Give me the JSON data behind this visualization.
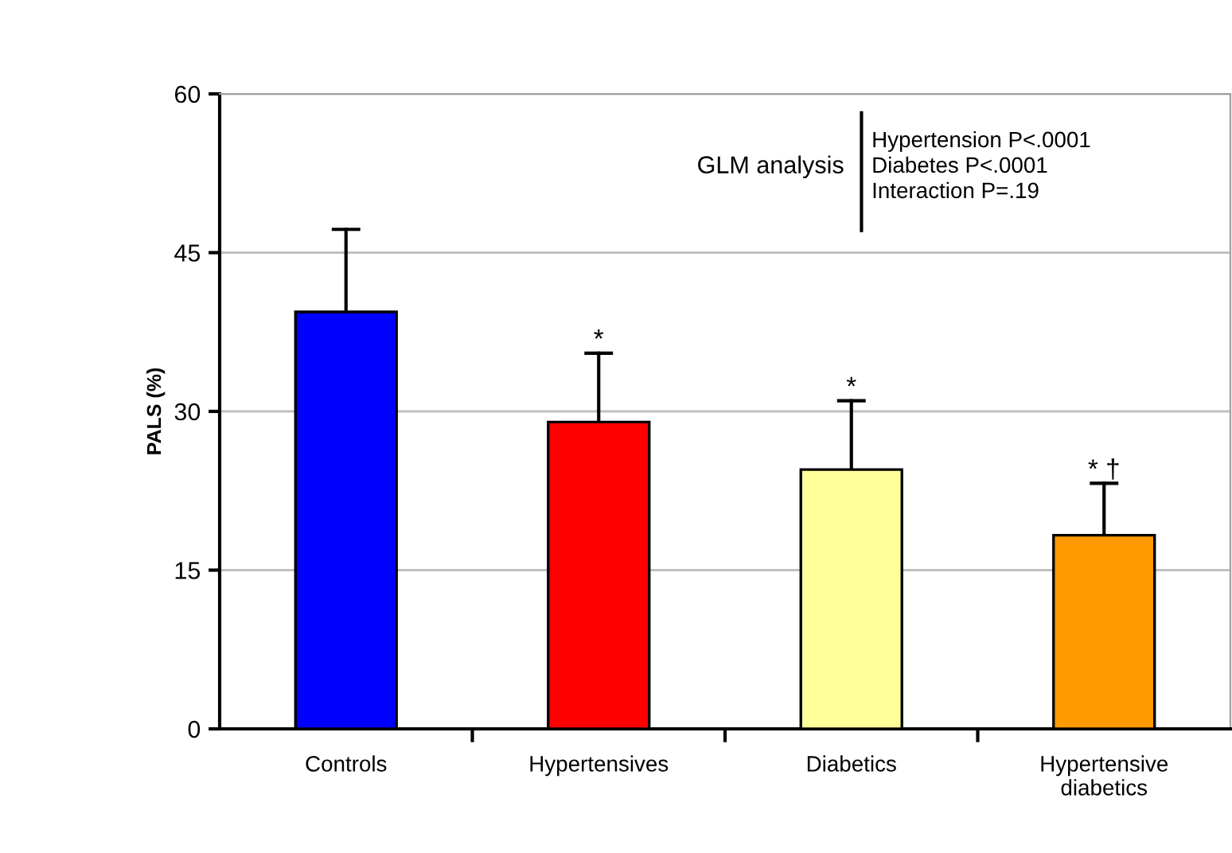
{
  "chart_data": {
    "type": "bar",
    "ylabel": "PALS (%)",
    "categories": [
      "Controls",
      "Hypertensives",
      "Diabetics",
      "Hypertensive\ndiabetics"
    ],
    "values": [
      39.4,
      29.0,
      24.5,
      18.3
    ],
    "colors": [
      "#0000ff",
      "#ff0000",
      "#ffff99",
      "#ff9900"
    ],
    "errors": [
      [
        39.4,
        47.2
      ],
      [
        29.0,
        35.5
      ],
      [
        24.5,
        31.0
      ],
      [
        18.3,
        23.2
      ]
    ],
    "ylim": [
      0,
      60
    ],
    "yticks": [
      0,
      15,
      30,
      45,
      60
    ],
    "grid": "y",
    "legend": false,
    "annotations": [
      "*",
      "*",
      "* †",
      "GLM analysis",
      "Hypertension P<.0001\nDiabetes P<.0001\nInteraction P=.19"
    ]
  }
}
